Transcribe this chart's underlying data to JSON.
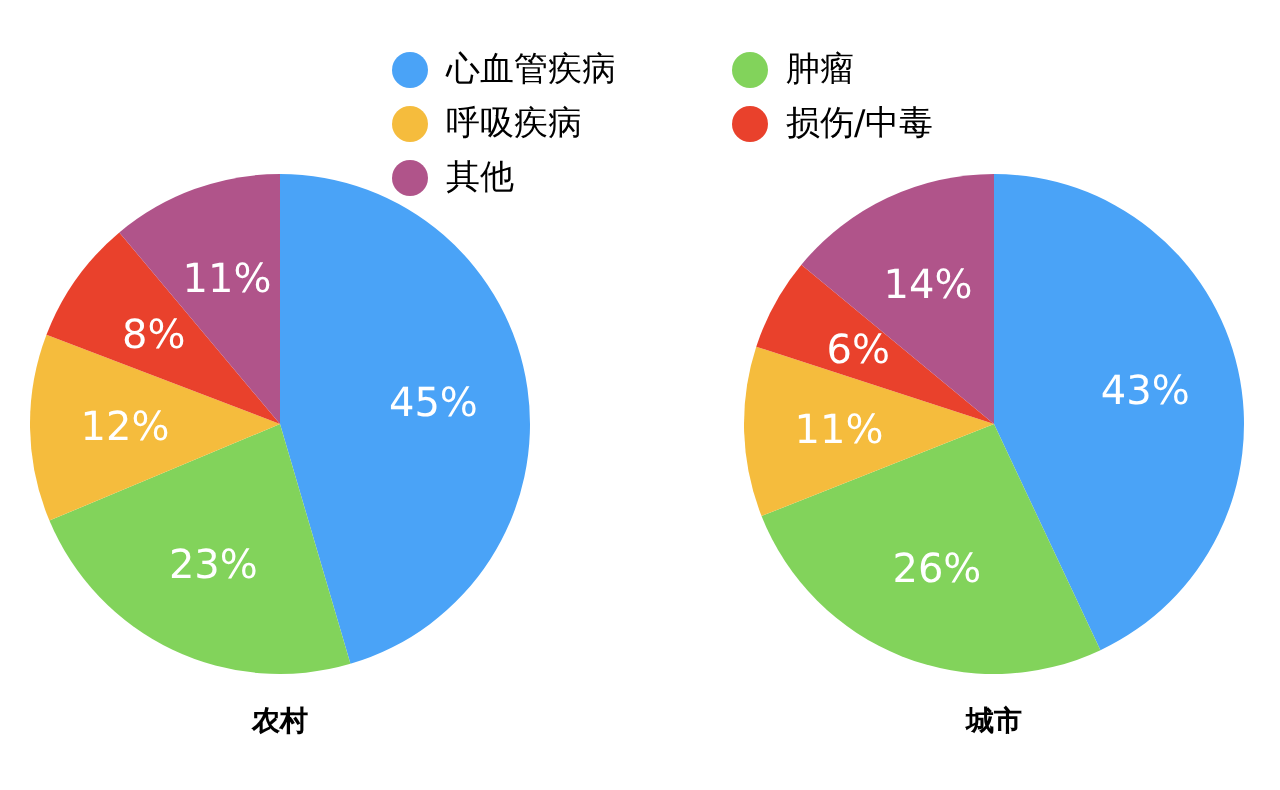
{
  "chart_data": [
    {
      "type": "pie",
      "title": "农村",
      "legend": "top",
      "categories": [
        "心血管疾病",
        "肿瘤",
        "呼吸疾病",
        "损伤/中毒",
        "其他"
      ],
      "values": [
        45,
        23,
        12,
        8,
        11
      ],
      "value_labels": [
        "45%",
        "23%",
        "12%",
        "8%",
        "11%"
      ],
      "colors": [
        "#4aa3f7",
        "#82d35b",
        "#f5bc3d",
        "#e9412c",
        "#b0548a"
      ]
    },
    {
      "type": "pie",
      "title": "城市",
      "categories": [
        null,
        null,
        null,
        null,
        null
      ],
      "values": [
        43,
        26,
        11,
        6,
        14
      ],
      "value_labels": [
        "43%",
        "26%",
        "11%",
        "6%",
        "14%"
      ],
      "colors": [
        "#4aa3f7",
        "#82d35b",
        "#f5bc3d",
        "#e9412c",
        "#b0548a"
      ]
    }
  ]
}
